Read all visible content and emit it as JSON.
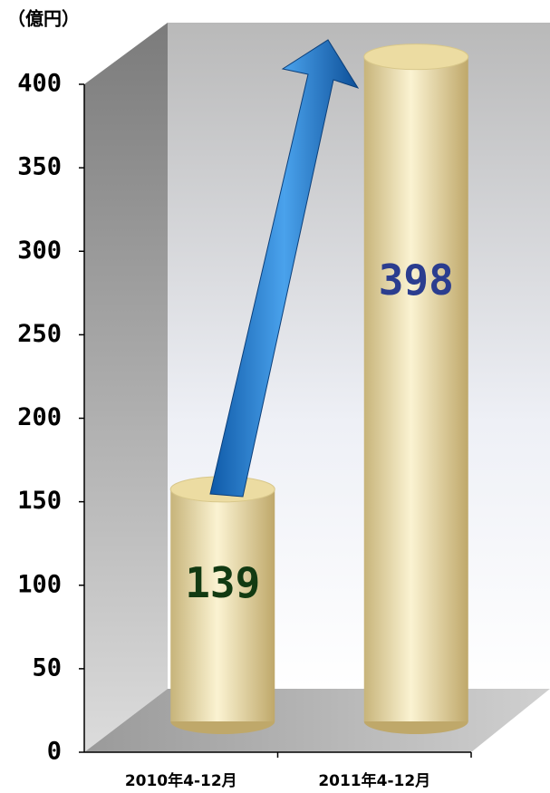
{
  "chart_data": {
    "type": "bar",
    "unit_label": "（億円）",
    "categories": [
      "2010年4-12月",
      "2011年4-12月"
    ],
    "values": [
      139,
      398
    ],
    "color": "#ecdca2",
    "value_label_colors": [
      "#123a12",
      "#2b3d8f"
    ],
    "ylim": [
      0,
      400
    ],
    "yticks": [
      0,
      50,
      100,
      150,
      200,
      250,
      300,
      350,
      400
    ]
  }
}
